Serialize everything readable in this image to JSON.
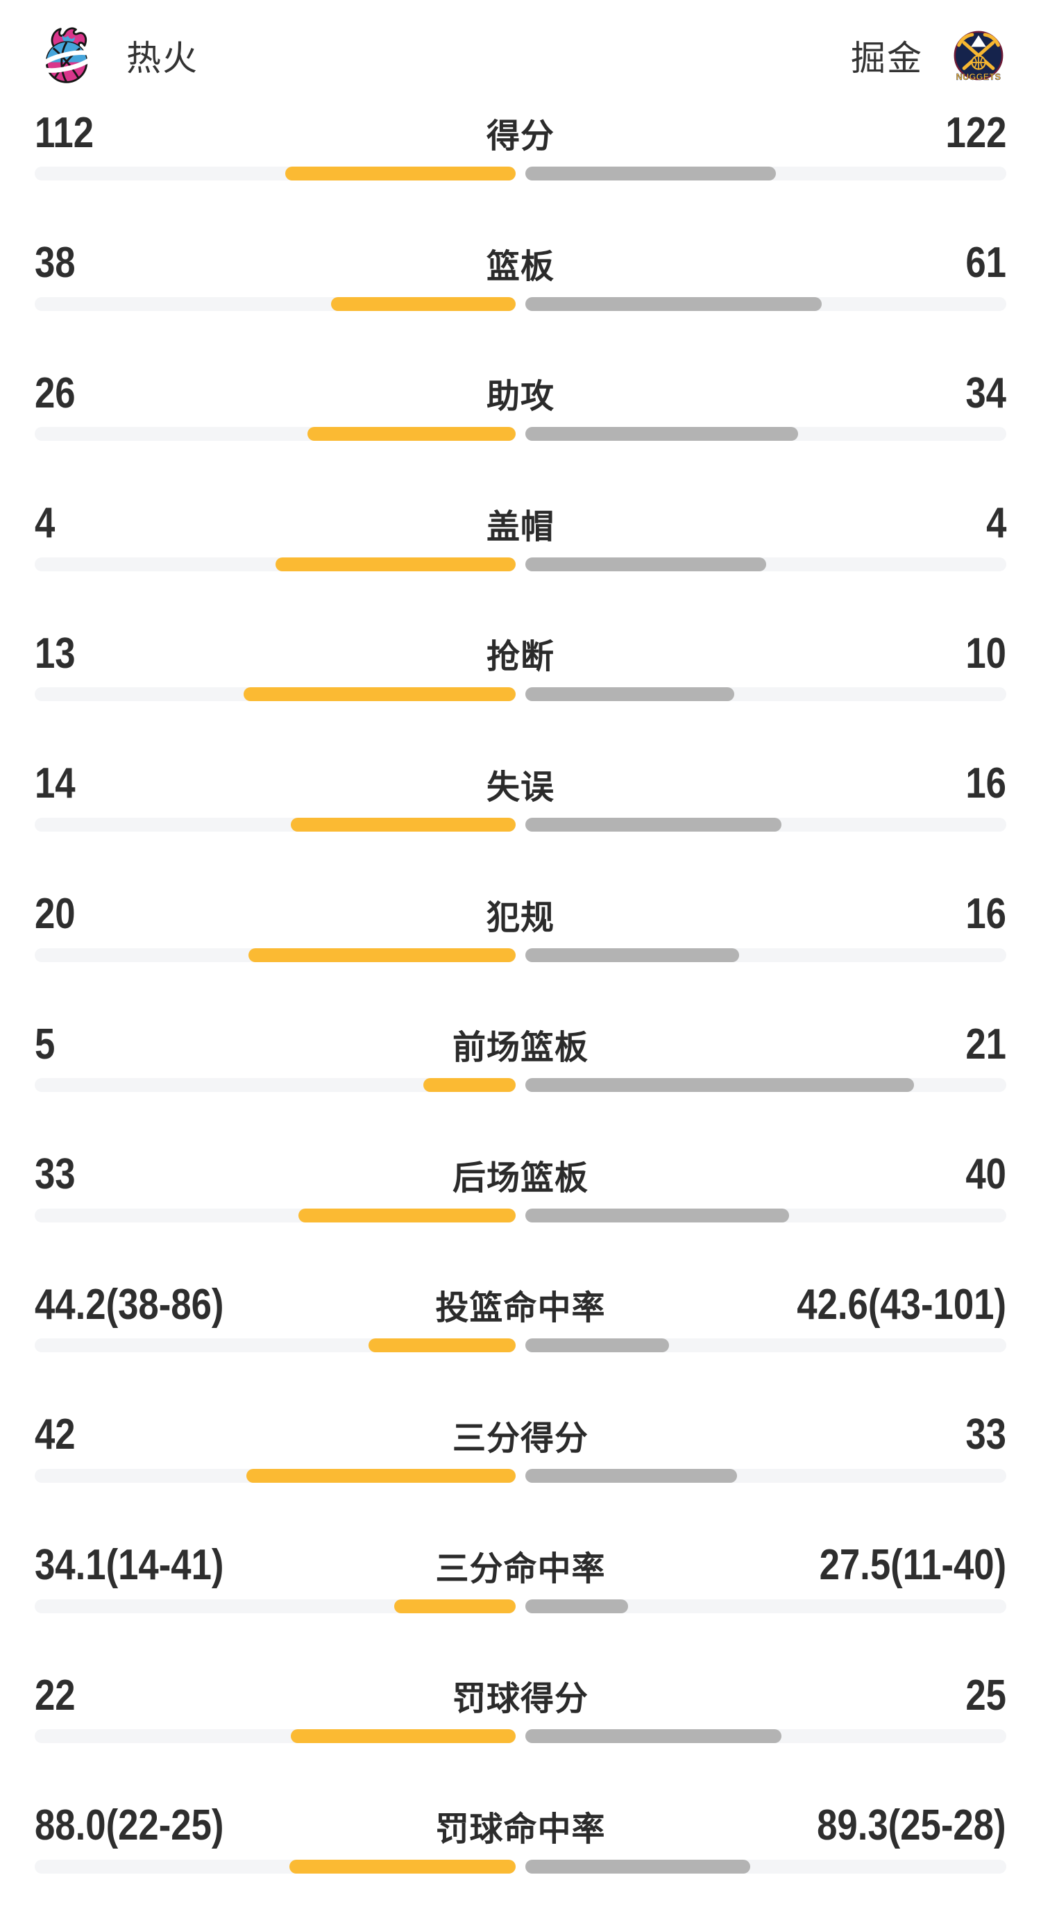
{
  "header": {
    "home_team": "热火",
    "away_team": "掘金",
    "nuggets_banner": "NUGGETS"
  },
  "colors": {
    "home_bar": "#FBBA33",
    "away_bar": "#B3B3B3",
    "track": "#F4F5F7",
    "text": "#2E2E2E"
  },
  "chart_data": {
    "type": "bar",
    "teams": [
      "热火",
      "掘金"
    ],
    "legend_position": "top",
    "rows": [
      {
        "label": "得分",
        "home": "112",
        "away": "122",
        "home_bar_pct": 47.9,
        "away_bar_pct": 52.1
      },
      {
        "label": "篮板",
        "home": "38",
        "away": "61",
        "home_bar_pct": 38.4,
        "away_bar_pct": 61.6
      },
      {
        "label": "助攻",
        "home": "26",
        "away": "34",
        "home_bar_pct": 43.3,
        "away_bar_pct": 56.7
      },
      {
        "label": "盖帽",
        "home": "4",
        "away": "4",
        "home_bar_pct": 50.0,
        "away_bar_pct": 50.0
      },
      {
        "label": "抢断",
        "home": "13",
        "away": "10",
        "home_bar_pct": 56.5,
        "away_bar_pct": 43.5
      },
      {
        "label": "失误",
        "home": "14",
        "away": "16",
        "home_bar_pct": 46.7,
        "away_bar_pct": 53.3
      },
      {
        "label": "犯规",
        "home": "20",
        "away": "16",
        "home_bar_pct": 55.6,
        "away_bar_pct": 44.4
      },
      {
        "label": "前场篮板",
        "home": "5",
        "away": "21",
        "home_bar_pct": 19.2,
        "away_bar_pct": 80.8
      },
      {
        "label": "后场篮板",
        "home": "33",
        "away": "40",
        "home_bar_pct": 45.2,
        "away_bar_pct": 54.8
      },
      {
        "label": "投篮命中率",
        "home": "44.2(38-86)",
        "away": "42.6(43-101)",
        "home_bar_pct": 30.6,
        "away_bar_pct": 29.9
      },
      {
        "label": "三分得分",
        "home": "42",
        "away": "33",
        "home_bar_pct": 56.0,
        "away_bar_pct": 44.0
      },
      {
        "label": "三分命中率",
        "home": "34.1(14-41)",
        "away": "27.5(11-40)",
        "home_bar_pct": 25.2,
        "away_bar_pct": 21.4
      },
      {
        "label": "罚球得分",
        "home": "22",
        "away": "25",
        "home_bar_pct": 46.8,
        "away_bar_pct": 53.2
      },
      {
        "label": "罚球命中率",
        "home": "88.0(22-25)",
        "away": "89.3(25-28)",
        "home_bar_pct": 47.0,
        "away_bar_pct": 46.8
      }
    ]
  }
}
